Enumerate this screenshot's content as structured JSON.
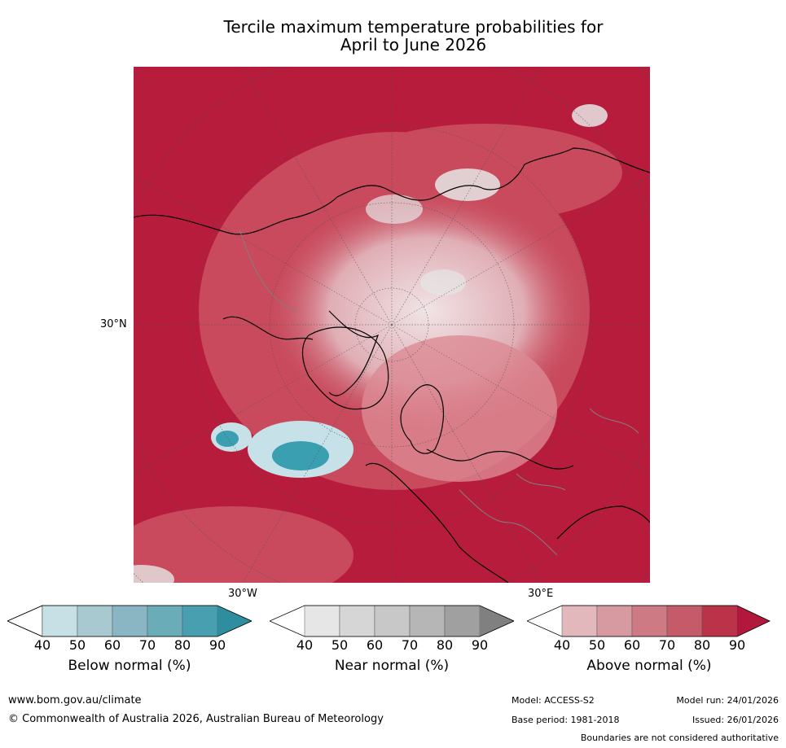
{
  "title_line1": "Tercile maximum temperature probabilities for",
  "title_line2": "April to June 2026",
  "map": {
    "lat_label": "30°N",
    "lon_label_west": "30°W",
    "lon_label_east": "30°E",
    "colors": {
      "above_main": "#b81c3c",
      "above_mid": "#c84a5c",
      "above_light": "#dc8a93",
      "near_light": "#e6e6e6",
      "below_teal": "#3a9fb0",
      "below_light": "#c6e2e8"
    }
  },
  "colorbars": [
    {
      "label": "Below normal (%)",
      "ticks": [
        "40",
        "50",
        "60",
        "70",
        "80",
        "90"
      ],
      "colors": [
        "#ffffff",
        "#c6e0e6",
        "#a7c9cf",
        "#8ab5c3",
        "#6bacb9",
        "#489fb0",
        "#2e8ea0"
      ]
    },
    {
      "label": "Near normal (%)",
      "ticks": [
        "40",
        "50",
        "60",
        "70",
        "80",
        "90"
      ],
      "colors": [
        "#ffffff",
        "#e6e6e6",
        "#d6d6d6",
        "#c8c8c8",
        "#b6b6b6",
        "#a0a0a0",
        "#808080"
      ]
    },
    {
      "label": "Above normal (%)",
      "ticks": [
        "40",
        "50",
        "60",
        "70",
        "80",
        "90"
      ],
      "colors": [
        "#ffffff",
        "#e3b8bd",
        "#d89aa1",
        "#ce7a84",
        "#c55b68",
        "#bb3349",
        "#b2183b"
      ]
    }
  ],
  "footer": {
    "website": "www.bom.gov.au/climate",
    "copyright": "© Commonwealth of Australia 2026, Australian Bureau of Meteorology",
    "model": "Model: ACCESS-S2",
    "model_run": "Model run: 24/01/2026",
    "base_period": "Base period: 1981-2018",
    "issued": "Issued: 26/01/2026",
    "disclaimer": "Boundaries are not considered authoritative"
  }
}
